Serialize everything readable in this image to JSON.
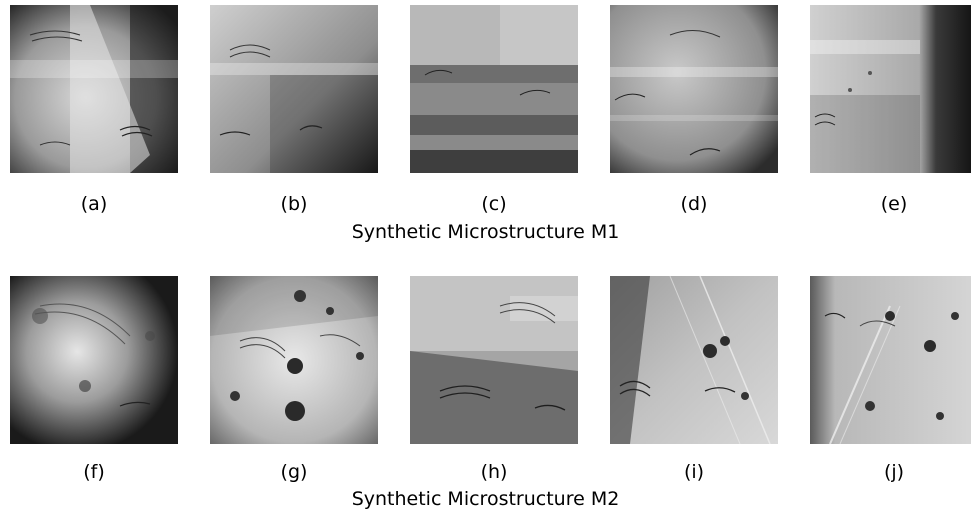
{
  "rows": [
    {
      "caption": "Synthetic Microstructure M1",
      "panels": [
        {
          "label": "(a)"
        },
        {
          "label": "(b)"
        },
        {
          "label": "(c)"
        },
        {
          "label": "(d)"
        },
        {
          "label": "(e)"
        }
      ]
    },
    {
      "caption": "Synthetic Microstructure M2",
      "panels": [
        {
          "label": "(f)"
        },
        {
          "label": "(g)"
        },
        {
          "label": "(h)"
        },
        {
          "label": "(i)"
        },
        {
          "label": "(j)"
        }
      ]
    }
  ]
}
